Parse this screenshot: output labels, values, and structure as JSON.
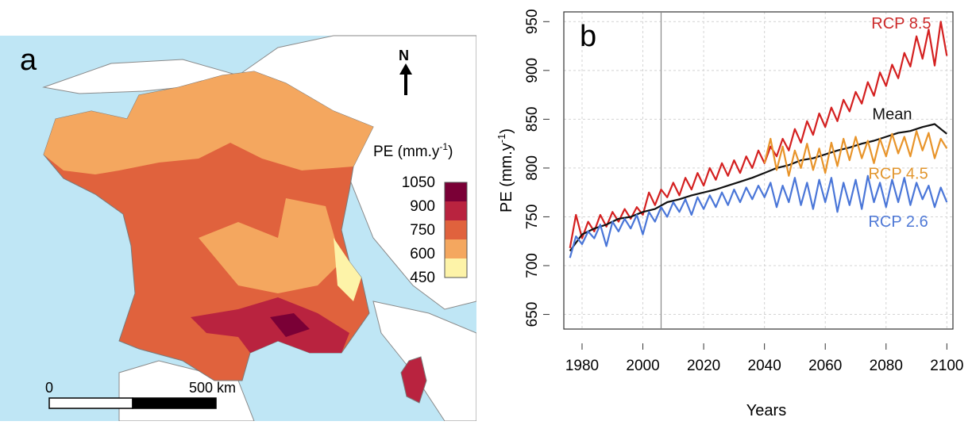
{
  "map": {
    "panel_label": "a",
    "north_label": "N",
    "legend": {
      "title_main": "PE (mm.y",
      "title_sup": "-1",
      "title_close": ")",
      "ticks": [
        "1050",
        "900",
        "750",
        "600",
        "450"
      ],
      "colors": [
        "#7a0036",
        "#b9233f",
        "#e0623d",
        "#f4a75f",
        "#fdf3a8"
      ]
    },
    "scale": {
      "start_label": "0",
      "end_label": "500 km"
    },
    "colors": {
      "sea": "#bfe6f5",
      "neighbour": "#ffffff",
      "border": "#7a7a7a"
    }
  },
  "chart_data": {
    "type": "line",
    "panel_label": "b",
    "xlabel": "Years",
    "ylabel_main": "PE (mm.y",
    "ylabel_sup": "-1",
    "ylabel_close": ")",
    "xlim": [
      1974,
      2102
    ],
    "ylim": [
      635,
      960
    ],
    "xticks": [
      1980,
      2000,
      2020,
      2040,
      2060,
      2080,
      2100
    ],
    "yticks": [
      650,
      700,
      750,
      800,
      850,
      900,
      950
    ],
    "grid": true,
    "vline_x": 2006,
    "annotations": [
      {
        "text": "RCP 8.5",
        "x": 2085,
        "y": 943,
        "color": "#cc2a2a"
      },
      {
        "text": "Mean",
        "x": 2082,
        "y": 850,
        "color": "#111111"
      },
      {
        "text": "RCP 4.5",
        "x": 2084,
        "y": 789,
        "color": "#e2962e"
      },
      {
        "text": "RCP 2.6",
        "x": 2084,
        "y": 740,
        "color": "#4f79d6"
      }
    ],
    "series": [
      {
        "name": "RCP 8.5",
        "color": "#d42020",
        "points": [
          [
            1976,
            718
          ],
          [
            1978,
            752
          ],
          [
            1980,
            728
          ],
          [
            1982,
            745
          ],
          [
            1984,
            735
          ],
          [
            1986,
            752
          ],
          [
            1988,
            740
          ],
          [
            1990,
            755
          ],
          [
            1992,
            745
          ],
          [
            1994,
            758
          ],
          [
            1996,
            748
          ],
          [
            1998,
            760
          ],
          [
            2000,
            752
          ],
          [
            2002,
            775
          ],
          [
            2004,
            762
          ],
          [
            2006,
            778
          ],
          [
            2008,
            770
          ],
          [
            2010,
            785
          ],
          [
            2012,
            772
          ],
          [
            2014,
            790
          ],
          [
            2016,
            778
          ],
          [
            2018,
            795
          ],
          [
            2020,
            782
          ],
          [
            2022,
            800
          ],
          [
            2024,
            788
          ],
          [
            2026,
            805
          ],
          [
            2028,
            792
          ],
          [
            2030,
            808
          ],
          [
            2032,
            795
          ],
          [
            2034,
            812
          ],
          [
            2036,
            800
          ],
          [
            2038,
            818
          ],
          [
            2040,
            805
          ],
          [
            2042,
            822
          ],
          [
            2044,
            812
          ],
          [
            2046,
            830
          ],
          [
            2048,
            818
          ],
          [
            2050,
            840
          ],
          [
            2052,
            826
          ],
          [
            2054,
            848
          ],
          [
            2056,
            834
          ],
          [
            2058,
            856
          ],
          [
            2060,
            842
          ],
          [
            2062,
            862
          ],
          [
            2064,
            848
          ],
          [
            2066,
            870
          ],
          [
            2068,
            858
          ],
          [
            2070,
            878
          ],
          [
            2072,
            866
          ],
          [
            2074,
            888
          ],
          [
            2076,
            874
          ],
          [
            2078,
            898
          ],
          [
            2080,
            884
          ],
          [
            2082,
            906
          ],
          [
            2084,
            892
          ],
          [
            2086,
            918
          ],
          [
            2088,
            904
          ],
          [
            2090,
            935
          ],
          [
            2092,
            912
          ],
          [
            2094,
            942
          ],
          [
            2096,
            905
          ],
          [
            2098,
            950
          ],
          [
            2100,
            915
          ]
        ]
      },
      {
        "name": "Mean",
        "color": "#111111",
        "points": [
          [
            1976,
            715
          ],
          [
            1980,
            732
          ],
          [
            1984,
            738
          ],
          [
            1988,
            742
          ],
          [
            1992,
            748
          ],
          [
            1996,
            750
          ],
          [
            2000,
            755
          ],
          [
            2004,
            758
          ],
          [
            2008,
            765
          ],
          [
            2012,
            768
          ],
          [
            2016,
            772
          ],
          [
            2020,
            775
          ],
          [
            2024,
            778
          ],
          [
            2028,
            782
          ],
          [
            2032,
            786
          ],
          [
            2036,
            790
          ],
          [
            2040,
            795
          ],
          [
            2044,
            800
          ],
          [
            2048,
            803
          ],
          [
            2052,
            808
          ],
          [
            2056,
            810
          ],
          [
            2060,
            814
          ],
          [
            2064,
            818
          ],
          [
            2068,
            821
          ],
          [
            2072,
            825
          ],
          [
            2076,
            828
          ],
          [
            2080,
            832
          ],
          [
            2084,
            836
          ],
          [
            2088,
            838
          ],
          [
            2092,
            842
          ],
          [
            2096,
            845
          ],
          [
            2100,
            835
          ]
        ]
      },
      {
        "name": "RCP 4.5",
        "color": "#e8942a",
        "points": [
          [
            2040,
            805
          ],
          [
            2042,
            830
          ],
          [
            2044,
            798
          ],
          [
            2046,
            822
          ],
          [
            2048,
            792
          ],
          [
            2050,
            818
          ],
          [
            2052,
            800
          ],
          [
            2054,
            825
          ],
          [
            2056,
            798
          ],
          [
            2058,
            820
          ],
          [
            2060,
            795
          ],
          [
            2062,
            826
          ],
          [
            2064,
            802
          ],
          [
            2066,
            830
          ],
          [
            2068,
            808
          ],
          [
            2070,
            832
          ],
          [
            2072,
            810
          ],
          [
            2074,
            828
          ],
          [
            2076,
            805
          ],
          [
            2078,
            830
          ],
          [
            2080,
            812
          ],
          [
            2082,
            835
          ],
          [
            2084,
            815
          ],
          [
            2086,
            832
          ],
          [
            2088,
            812
          ],
          [
            2090,
            838
          ],
          [
            2092,
            818
          ],
          [
            2094,
            836
          ],
          [
            2096,
            810
          ],
          [
            2098,
            830
          ],
          [
            2100,
            820
          ]
        ]
      },
      {
        "name": "RCP 2.6",
        "color": "#4a76d8",
        "points": [
          [
            1976,
            708
          ],
          [
            1978,
            730
          ],
          [
            1980,
            722
          ],
          [
            1982,
            735
          ],
          [
            1984,
            728
          ],
          [
            1986,
            742
          ],
          [
            1988,
            720
          ],
          [
            1990,
            745
          ],
          [
            1992,
            735
          ],
          [
            1994,
            748
          ],
          [
            1996,
            738
          ],
          [
            1998,
            752
          ],
          [
            2000,
            732
          ],
          [
            2002,
            755
          ],
          [
            2004,
            745
          ],
          [
            2006,
            760
          ],
          [
            2008,
            750
          ],
          [
            2010,
            765
          ],
          [
            2012,
            755
          ],
          [
            2014,
            768
          ],
          [
            2016,
            752
          ],
          [
            2018,
            770
          ],
          [
            2020,
            758
          ],
          [
            2022,
            772
          ],
          [
            2024,
            760
          ],
          [
            2026,
            775
          ],
          [
            2028,
            762
          ],
          [
            2030,
            778
          ],
          [
            2032,
            765
          ],
          [
            2034,
            780
          ],
          [
            2036,
            768
          ],
          [
            2038,
            782
          ],
          [
            2040,
            770
          ],
          [
            2042,
            785
          ],
          [
            2044,
            760
          ],
          [
            2046,
            782
          ],
          [
            2048,
            765
          ],
          [
            2050,
            790
          ],
          [
            2052,
            762
          ],
          [
            2054,
            785
          ],
          [
            2056,
            758
          ],
          [
            2058,
            788
          ],
          [
            2060,
            765
          ],
          [
            2062,
            790
          ],
          [
            2064,
            755
          ],
          [
            2066,
            785
          ],
          [
            2068,
            762
          ],
          [
            2070,
            788
          ],
          [
            2072,
            758
          ],
          [
            2074,
            792
          ],
          [
            2076,
            765
          ],
          [
            2078,
            785
          ],
          [
            2080,
            760
          ],
          [
            2082,
            788
          ],
          [
            2084,
            765
          ],
          [
            2086,
            790
          ],
          [
            2088,
            762
          ],
          [
            2090,
            785
          ],
          [
            2092,
            768
          ],
          [
            2094,
            782
          ],
          [
            2096,
            760
          ],
          [
            2098,
            780
          ],
          [
            2100,
            765
          ]
        ]
      }
    ]
  }
}
